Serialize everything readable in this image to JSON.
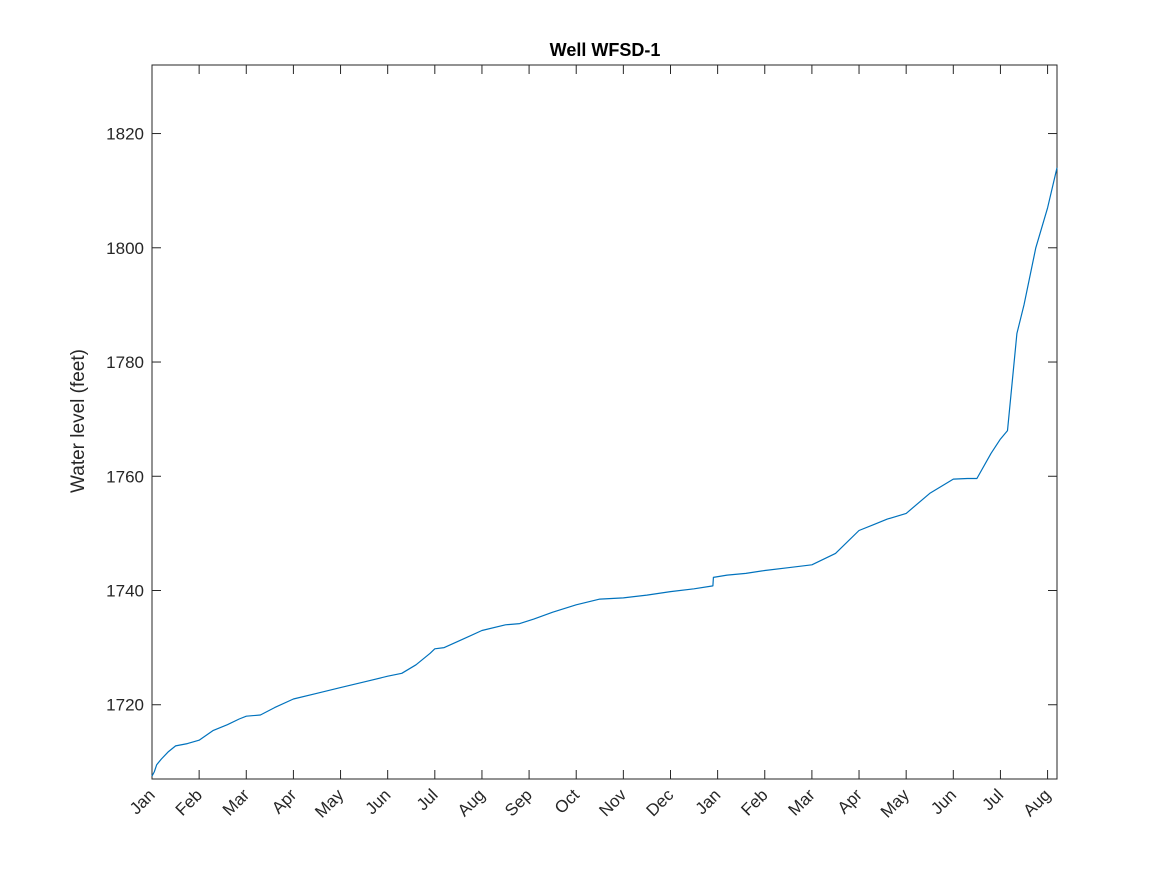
{
  "chart_data": {
    "type": "line",
    "title": "Well WFSD-1",
    "xlabel": "",
    "ylabel": "Water level (feet)",
    "xlim": [
      0,
      19.2
    ],
    "ylim": [
      1707,
      1832
    ],
    "yticks": [
      1720,
      1740,
      1760,
      1780,
      1800,
      1820
    ],
    "xtick_positions": [
      0,
      1,
      2,
      3,
      4,
      5,
      6,
      7,
      8,
      9,
      10,
      11,
      12,
      13,
      14,
      15,
      16,
      17,
      18,
      19
    ],
    "xtick_labels": [
      "Jan",
      "Feb",
      "Mar",
      "Apr",
      "May",
      "Jun",
      "Jul",
      "Aug",
      "Sep",
      "Oct",
      "Nov",
      "Dec",
      "Jan",
      "Feb",
      "Mar",
      "Apr",
      "May",
      "Jun",
      "Jul",
      "Aug"
    ],
    "grid": false,
    "series": [
      {
        "name": "Water level",
        "color": "#0072BD",
        "x": [
          0,
          0.05,
          0.1,
          0.2,
          0.35,
          0.5,
          0.75,
          1.0,
          1.3,
          1.6,
          1.85,
          2.0,
          2.3,
          2.6,
          3.0,
          3.5,
          4.0,
          4.5,
          5.0,
          5.3,
          5.6,
          5.9,
          6.0,
          6.2,
          6.6,
          7.0,
          7.5,
          7.8,
          8.1,
          8.5,
          9.0,
          9.5,
          10.0,
          10.5,
          11.0,
          11.5,
          11.9,
          11.91,
          12.2,
          12.6,
          13.0,
          13.5,
          14.0,
          14.5,
          15.0,
          15.3,
          15.6,
          16.0,
          16.5,
          17.0,
          17.3,
          17.5,
          17.8,
          18.0,
          18.15,
          18.35,
          18.5,
          18.75,
          19.0,
          19.2
        ],
        "y": [
          1707.5,
          1708.3,
          1709.5,
          1710.5,
          1711.8,
          1712.8,
          1713.2,
          1713.8,
          1715.5,
          1716.5,
          1717.5,
          1718.0,
          1718.2,
          1719.5,
          1721.0,
          1722.0,
          1723.0,
          1724.0,
          1725.0,
          1725.5,
          1727.0,
          1729.0,
          1729.8,
          1730.0,
          1731.5,
          1733.0,
          1734.0,
          1734.2,
          1735.0,
          1736.2,
          1737.5,
          1738.5,
          1738.7,
          1739.2,
          1739.8,
          1740.3,
          1740.8,
          1742.3,
          1742.7,
          1743.0,
          1743.5,
          1744.0,
          1744.5,
          1746.5,
          1750.5,
          1751.5,
          1752.5,
          1753.5,
          1757.0,
          1759.5,
          1759.6,
          1759.6,
          1764.0,
          1766.5,
          1768.0,
          1785.0,
          1790.0,
          1800.0,
          1807.0,
          1814.0
        ]
      }
    ]
  }
}
